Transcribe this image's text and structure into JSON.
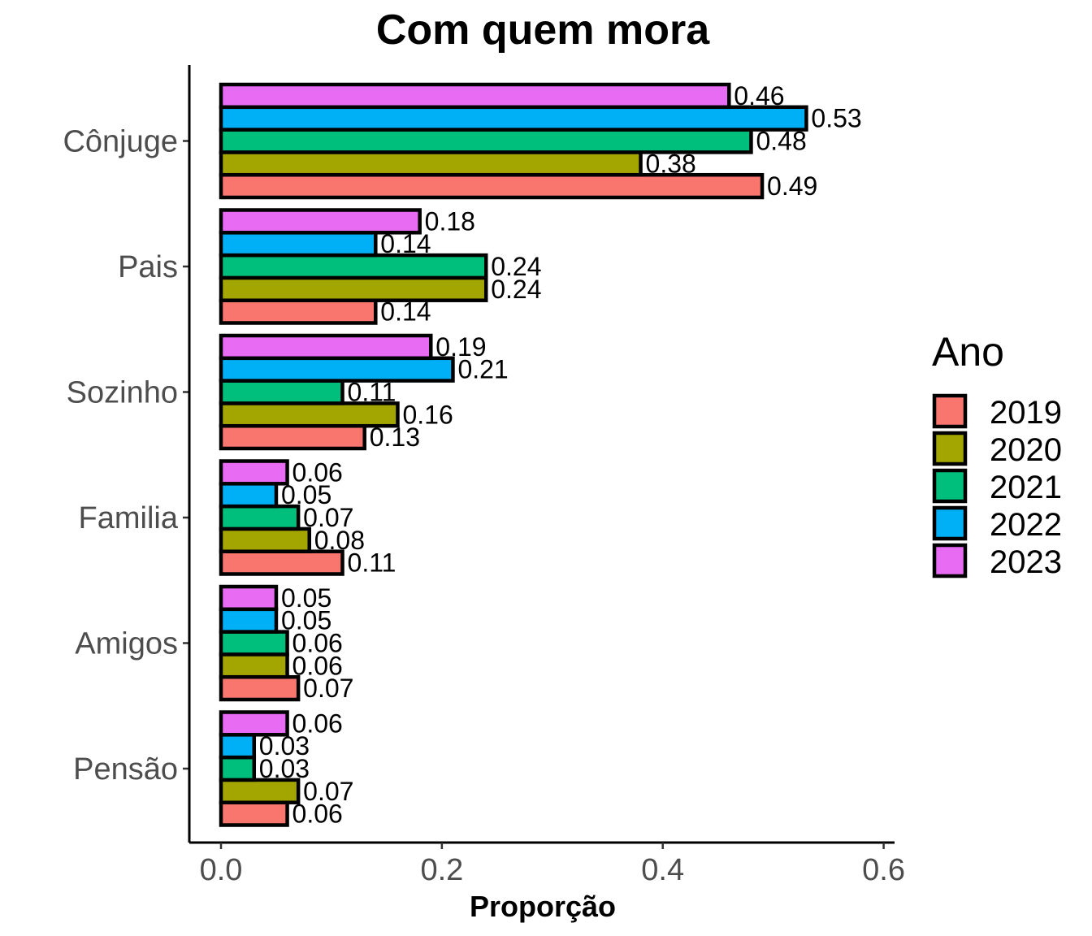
{
  "chart_data": {
    "type": "bar",
    "orientation": "horizontal",
    "title": "Com quem mora",
    "xlabel": "Proporção",
    "ylabel": "",
    "xlim": [
      0,
      0.6
    ],
    "x_ticks": [
      "0.0",
      "0.2",
      "0.4",
      "0.6"
    ],
    "categories": [
      "Cônjuge",
      "Pais",
      "Sozinho",
      "Familia",
      "Amigos",
      "Pensão"
    ],
    "legend_title": "Ano",
    "legend_position": "right",
    "grid": false,
    "series": [
      {
        "name": "2019",
        "color": "#F8766D",
        "values": [
          0.49,
          0.14,
          0.13,
          0.11,
          0.07,
          0.06
        ],
        "labels": [
          "0.49",
          "0.14",
          "0.13",
          "0.11",
          "0.07",
          "0.06"
        ]
      },
      {
        "name": "2020",
        "color": "#A3A500",
        "values": [
          0.38,
          0.24,
          0.16,
          0.08,
          0.06,
          0.07
        ],
        "labels": [
          "0.38",
          "0.24",
          "0.16",
          "0.08",
          "0.06",
          "0.07"
        ]
      },
      {
        "name": "2021",
        "color": "#00BF7D",
        "values": [
          0.48,
          0.24,
          0.11,
          0.07,
          0.06,
          0.03
        ],
        "labels": [
          "0.48",
          "0.24",
          "0.11",
          "0.07",
          "0.06",
          "0.03"
        ]
      },
      {
        "name": "2022",
        "color": "#00B0F6",
        "values": [
          0.53,
          0.14,
          0.21,
          0.05,
          0.05,
          0.03
        ],
        "labels": [
          "0.53",
          "0.14",
          "0.21",
          "0.05",
          "0.05",
          "0.03"
        ]
      },
      {
        "name": "2023",
        "color": "#E76BF3",
        "values": [
          0.46,
          0.18,
          0.19,
          0.06,
          0.05,
          0.06
        ],
        "labels": [
          "0.46",
          "0.18",
          "0.19",
          "0.06",
          "0.05",
          "0.06"
        ]
      }
    ]
  }
}
